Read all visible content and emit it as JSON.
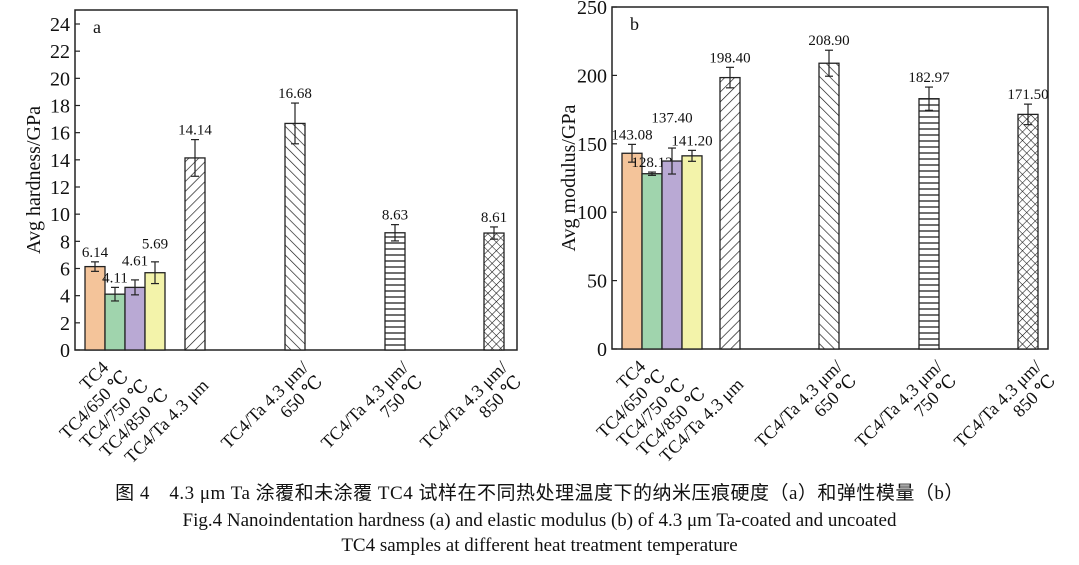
{
  "chart_data": [
    {
      "type": "bar",
      "panel_label": "a",
      "ylabel": "Avg hardness/GPa",
      "xlabel": "",
      "ylim": [
        0,
        25
      ],
      "yticks": [
        0,
        2,
        4,
        6,
        8,
        10,
        12,
        14,
        16,
        18,
        20,
        22,
        24
      ],
      "grid": false,
      "categories": [
        [
          "TC4"
        ],
        [
          "TC4/650 ℃"
        ],
        [
          "TC4/750 ℃"
        ],
        [
          "TC4/850 ℃"
        ],
        [
          "TC4/Ta 4.3 μm"
        ],
        [
          "TC4/Ta 4.3 μm/",
          "650 ℃"
        ],
        [
          "TC4/Ta 4.3 μm/",
          "750 ℃"
        ],
        [
          "TC4/Ta 4.3 μm/",
          "850 ℃"
        ]
      ],
      "values": [
        6.14,
        4.11,
        4.61,
        5.69,
        14.14,
        16.68,
        8.63,
        8.61
      ],
      "data_labels": [
        "6.14",
        "4.11",
        "4.61",
        "5.69",
        "14.14",
        "16.68",
        "8.63",
        "8.61"
      ],
      "errors": [
        0.35,
        0.5,
        0.55,
        0.8,
        1.35,
        1.5,
        0.6,
        0.45
      ],
      "fills": [
        "#f4c49a",
        "#a0d4ad",
        "#b9a9d4",
        "#f3f3aa",
        "hatch-back",
        "hatch-forward",
        "hatch-horizontal",
        "hatch-cross"
      ]
    },
    {
      "type": "bar",
      "panel_label": "b",
      "ylabel": "Avg modulus/GPa",
      "xlabel": "",
      "ylim": [
        0,
        250
      ],
      "yticks": [
        0,
        50,
        100,
        150,
        200,
        250
      ],
      "grid": false,
      "categories": [
        [
          "TC4"
        ],
        [
          "TC4/650 ℃"
        ],
        [
          "TC4/750 ℃"
        ],
        [
          "TC4/850 ℃"
        ],
        [
          "TC4/Ta 4.3 μm"
        ],
        [
          "TC4/Ta 4.3 μm/",
          "650 ℃"
        ],
        [
          "TC4/Ta 4.3 μm/",
          "750 ℃"
        ],
        [
          "TC4/Ta 4.3 μm/",
          "850 ℃"
        ]
      ],
      "values": [
        143.08,
        128.13,
        137.4,
        141.2,
        198.4,
        208.9,
        182.97,
        171.5
      ],
      "data_labels": [
        "143.08",
        "128.13",
        "137.40",
        "141.20",
        "198.40",
        "208.90",
        "182.97",
        "171.50"
      ],
      "errors": [
        6.5,
        1.2,
        9.5,
        4,
        7.5,
        9.5,
        8.5,
        7.5
      ],
      "fills": [
        "#f4c49a",
        "#a0d4ad",
        "#b9a9d4",
        "#f3f3aa",
        "hatch-back",
        "hatch-forward",
        "hatch-horizontal",
        "hatch-cross"
      ]
    }
  ],
  "caption": {
    "zh": "图 4　4.3 μm Ta 涂覆和未涂覆 TC4 试样在不同热处理温度下的纳米压痕硬度（a）和弹性模量（b）",
    "en_line1": "Fig.4 Nanoindentation hardness (a) and elastic modulus (b) of 4.3 μm Ta-coated and uncoated",
    "en_line2": "TC4 samples at different heat treatment temperature"
  }
}
